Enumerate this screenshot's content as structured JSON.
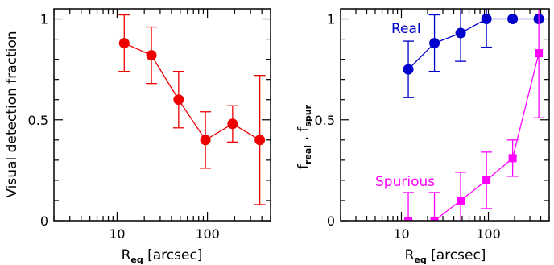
{
  "chart_data": [
    {
      "type": "scatter",
      "xscale": "log",
      "xlim": [
        2,
        500
      ],
      "ylim": [
        0,
        1.05
      ],
      "xticks": [
        10,
        100
      ],
      "xtick_labels": [
        "10",
        "100"
      ],
      "yticks": [
        0,
        0.5,
        1
      ],
      "ytick_labels": [
        "0",
        "0.5",
        "1"
      ],
      "xlabel": {
        "main": "R",
        "sub": "eq",
        "rest": " [arcsec]"
      },
      "ylabel": "Visual detection fraction",
      "series": [
        {
          "color": "#ee0000",
          "marker": "circle",
          "x": [
            12,
            24,
            48,
            95,
            190,
            380
          ],
          "y": [
            0.88,
            0.82,
            0.6,
            0.4,
            0.48,
            0.4
          ],
          "err_low": [
            0.74,
            0.68,
            0.46,
            0.26,
            0.39,
            0.08
          ],
          "err_high": [
            1.02,
            0.96,
            0.74,
            0.54,
            0.57,
            0.72
          ]
        }
      ]
    },
    {
      "type": "scatter",
      "xscale": "log",
      "xlim": [
        2,
        500
      ],
      "ylim": [
        0,
        1.05
      ],
      "xticks": [
        10,
        100
      ],
      "xtick_labels": [
        "10",
        "100"
      ],
      "yticks": [
        0,
        0.5,
        1
      ],
      "ytick_labels": [
        "0",
        "0.5",
        "1"
      ],
      "xlabel": {
        "main": "R",
        "sub": "eq",
        "rest": " [arcsec]"
      },
      "ylabel": {
        "a": "f",
        "a_sub": "real",
        "sep": " , ",
        "b": "f",
        "b_sub": "spur"
      },
      "series": [
        {
          "name": "Real",
          "color": "#0000cc",
          "marker": "circle",
          "x": [
            12,
            24,
            48,
            95,
            190,
            380
          ],
          "y": [
            0.75,
            0.88,
            0.93,
            1.0,
            1.0,
            1.0
          ],
          "err_low": [
            0.61,
            0.74,
            0.79,
            0.86,
            1.0,
            1.0
          ],
          "err_high": [
            0.89,
            1.02,
            1.07,
            1.14,
            1.0,
            1.0
          ]
        },
        {
          "name": "Spurious",
          "color": "#ff00ff",
          "marker": "square",
          "x": [
            12,
            24,
            48,
            95,
            190,
            380
          ],
          "y": [
            0.0,
            0.0,
            0.1,
            0.2,
            0.31,
            0.83
          ],
          "err_low": [
            -0.14,
            -0.14,
            -0.04,
            0.06,
            0.22,
            0.51
          ],
          "err_high": [
            0.14,
            0.14,
            0.24,
            0.34,
            0.4,
            1.15
          ]
        }
      ]
    }
  ]
}
